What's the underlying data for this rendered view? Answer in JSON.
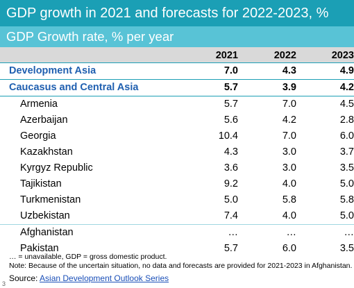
{
  "title": "GDP growth in 2021 and forecasts for 2022-2023, %",
  "subtitle": "GDP Growth rate, % per year",
  "columns": [
    "2021",
    "2022",
    "2023"
  ],
  "rows": [
    {
      "name": "Development Asia",
      "values": [
        "7.0",
        "4.3",
        "4.9"
      ],
      "type": "aggregate"
    },
    {
      "name": "Caucasus and Central Asia",
      "values": [
        "5.7",
        "3.9",
        "4.2"
      ],
      "type": "aggregate"
    },
    {
      "name": "Armenia",
      "values": [
        "5.7",
        "7.0",
        "4.5"
      ],
      "type": "country"
    },
    {
      "name": "Azerbaijan",
      "values": [
        "5.6",
        "4.2",
        "2.8"
      ],
      "type": "country"
    },
    {
      "name": "Georgia",
      "values": [
        "10.4",
        "7.0",
        "6.0"
      ],
      "type": "country"
    },
    {
      "name": "Kazakhstan",
      "values": [
        "4.3",
        "3.0",
        "3.7"
      ],
      "type": "country"
    },
    {
      "name": "Kyrgyz Republic",
      "values": [
        "3.6",
        "3.0",
        "3.5"
      ],
      "type": "country"
    },
    {
      "name": "Tajikistan",
      "values": [
        "9.2",
        "4.0",
        "5.0"
      ],
      "type": "country"
    },
    {
      "name": "Turkmenistan",
      "values": [
        "5.0",
        "5.8",
        "5.8"
      ],
      "type": "country"
    },
    {
      "name": "Uzbekistan",
      "values": [
        "7.4",
        "4.0",
        "5.0"
      ],
      "type": "country"
    },
    {
      "name": "Afghanistan",
      "values": [
        "…",
        "…",
        "…"
      ],
      "type": "country"
    },
    {
      "name": "Pakistan",
      "values": [
        "5.7",
        "6.0",
        "3.5"
      ],
      "type": "country"
    }
  ],
  "notes": [
    "… = unavailable, GDP = gross domestic product.",
    "Note: Because of the uncertain situation, no data and forecasts are provided for 2021-2023 in Afghanistan."
  ],
  "source_label": "Source:",
  "source_link": "Asian Development Outlook Series",
  "page_mark": "3",
  "colors": {
    "title_bar": "#1b9fb5",
    "subtitle_bar": "#58c3d6",
    "header_row": "#d9d9d9",
    "aggregate_text": "#1f5fb0",
    "link": "#1a4fb8"
  }
}
